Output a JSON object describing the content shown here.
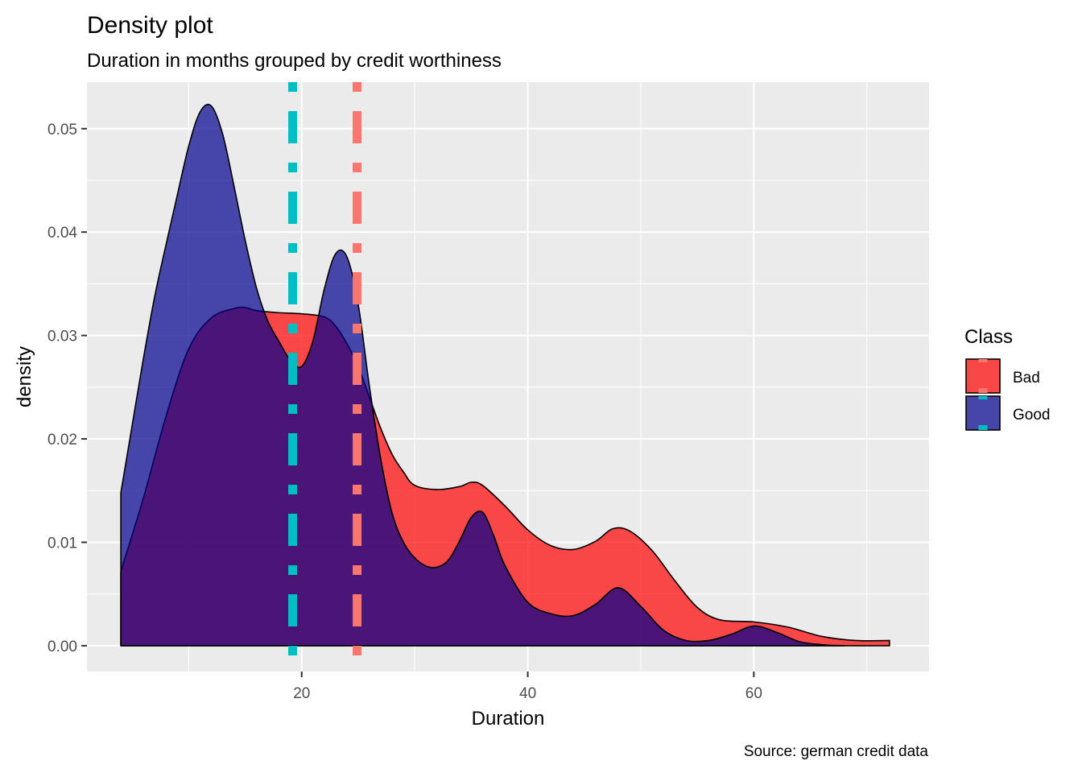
{
  "chart_data": {
    "type": "area",
    "title": "Density plot",
    "subtitle": "Duration in months grouped by credit worthiness",
    "xlabel": "Duration",
    "ylabel": "density",
    "caption": "Source: german credit data",
    "xlim": [
      1.0,
      75.5
    ],
    "ylim": [
      -0.0025,
      0.0545
    ],
    "x_ticks": [
      20,
      40,
      60
    ],
    "y_ticks": [
      0.0,
      0.01,
      0.02,
      0.03,
      0.04,
      0.05
    ],
    "x_tick_labels": [
      "20",
      "40",
      "60"
    ],
    "y_tick_labels": [
      "0.00",
      "0.01",
      "0.02",
      "0.03",
      "0.04",
      "0.05"
    ],
    "grid": true,
    "legend": {
      "title": "Class",
      "position": "right",
      "entries": [
        "Bad",
        "Good"
      ]
    },
    "series": [
      {
        "name": "Bad",
        "color": "#f8766d",
        "fill": "#ff0000",
        "fill_opacity": 0.7,
        "mean": 24.9,
        "x": [
          4,
          6,
          8,
          10,
          12,
          14,
          15,
          16,
          18,
          20,
          22,
          23,
          24,
          25,
          26,
          27,
          28,
          29,
          30,
          32,
          34,
          35,
          36,
          38,
          40,
          42,
          44,
          46,
          47.5,
          49,
          51,
          53,
          55,
          57,
          60,
          63,
          66,
          69,
          72
        ],
        "y": [
          0.0072,
          0.0143,
          0.0222,
          0.0287,
          0.0317,
          0.0326,
          0.0327,
          0.0324,
          0.0322,
          0.0321,
          0.0318,
          0.0309,
          0.0292,
          0.027,
          0.024,
          0.021,
          0.0185,
          0.0168,
          0.0155,
          0.0151,
          0.0154,
          0.0158,
          0.0155,
          0.0135,
          0.0112,
          0.0097,
          0.0093,
          0.0101,
          0.0113,
          0.0111,
          0.0092,
          0.0063,
          0.0037,
          0.0025,
          0.0023,
          0.0018,
          0.0009,
          0.0005,
          0.0005
        ]
      },
      {
        "name": "Good",
        "color": "#00bfc4",
        "fill": "#00008b",
        "fill_opacity": 0.7,
        "mean": 19.2,
        "x": [
          4,
          5,
          6,
          7,
          8,
          9,
          10,
          11,
          12,
          13,
          14,
          15,
          16,
          17,
          18,
          19,
          20,
          21,
          22,
          23,
          24,
          25,
          26,
          27,
          28,
          29,
          30,
          31,
          32,
          33,
          34,
          35,
          36,
          37,
          38,
          40,
          42,
          44,
          46,
          48,
          50,
          52,
          54,
          56,
          58,
          60,
          62,
          64,
          66,
          68
        ],
        "y": [
          0.0148,
          0.0213,
          0.0278,
          0.0338,
          0.0388,
          0.0436,
          0.0483,
          0.0516,
          0.0522,
          0.0495,
          0.0445,
          0.0392,
          0.0346,
          0.0314,
          0.0294,
          0.0276,
          0.027,
          0.0295,
          0.0345,
          0.0379,
          0.0376,
          0.033,
          0.025,
          0.018,
          0.0128,
          0.01,
          0.0085,
          0.0077,
          0.0076,
          0.0083,
          0.0102,
          0.0124,
          0.0129,
          0.0106,
          0.0077,
          0.0042,
          0.0031,
          0.0029,
          0.004,
          0.0056,
          0.0038,
          0.0015,
          0.0005,
          0.0005,
          0.0011,
          0.0019,
          0.0013,
          0.0004,
          0.0001,
          0.0
        ]
      }
    ]
  }
}
